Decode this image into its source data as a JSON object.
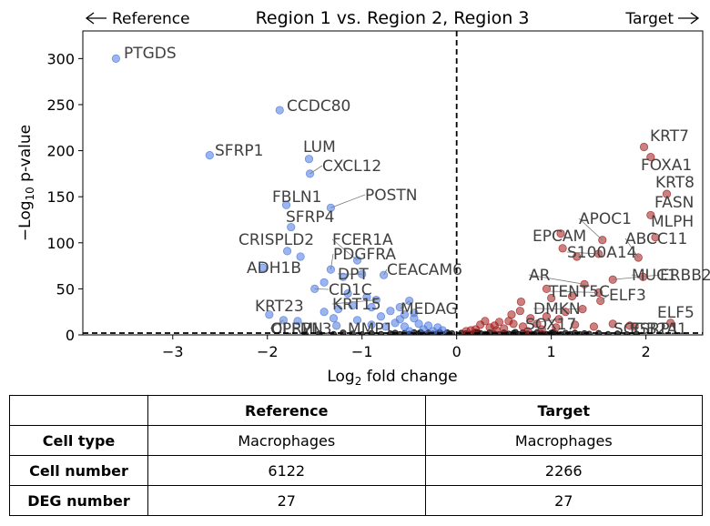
{
  "title": "Region 1 vs. Region 2, Region 3",
  "direction": {
    "left": "Reference",
    "right": "Target"
  },
  "table": {
    "headers": [
      "",
      "Reference",
      "Target"
    ],
    "rows": [
      {
        "label": "Cell type",
        "reference": "Macrophages",
        "target": "Macrophages"
      },
      {
        "label": "Cell number",
        "reference": "6122",
        "target": "2266"
      },
      {
        "label": "DEG number",
        "reference": "27",
        "target": "27"
      }
    ]
  },
  "chart_data": {
    "type": "scatter",
    "title": "Region 1 vs. Region 2, Region 3",
    "xlabel": "Log2 fold change",
    "ylabel": "−Log10 p-value",
    "xlim": [
      -3.95,
      2.6
    ],
    "ylim": [
      0,
      330
    ],
    "xticks": [
      -3,
      -2,
      -1,
      0,
      1,
      2
    ],
    "yticks": [
      0,
      50,
      100,
      150,
      200,
      250,
      300
    ],
    "threshold_lines": {
      "x": 0,
      "y": 2
    },
    "colors": {
      "reference": "#4a78e0",
      "target": "#a31a1a",
      "nonsig": "#111111",
      "label": "#404040"
    },
    "reference_points": [
      {
        "x": -3.6,
        "y": 300,
        "label": "PTGDS"
      },
      {
        "x": -1.87,
        "y": 244,
        "label": "CCDC80"
      },
      {
        "x": -2.61,
        "y": 195,
        "label": "SFRP1"
      },
      {
        "x": -1.56,
        "y": 191,
        "label": "LUM"
      },
      {
        "x": -1.55,
        "y": 175,
        "label": "CXCL12"
      },
      {
        "x": -1.8,
        "y": 141,
        "label": "FBLN1"
      },
      {
        "x": -1.33,
        "y": 138,
        "label": "POSTN"
      },
      {
        "x": -1.75,
        "y": 117,
        "label": "SFRP4"
      },
      {
        "x": -1.79,
        "y": 91,
        "label": "CRISPLD2"
      },
      {
        "x": -1.05,
        "y": 81,
        "label": "FCER1A"
      },
      {
        "x": -1.33,
        "y": 71,
        "label": "PDGFRA"
      },
      {
        "x": -2.05,
        "y": 73,
        "label": "ADH1B"
      },
      {
        "x": -0.77,
        "y": 65,
        "label": "CEACAM6"
      },
      {
        "x": -1.0,
        "y": 66,
        "label": "DPT"
      },
      {
        "x": -1.5,
        "y": 50,
        "label": "CD1C"
      },
      {
        "x": -0.85,
        "y": 38,
        "label": "KRT15"
      },
      {
        "x": -1.98,
        "y": 22,
        "label": "KRT23"
      },
      {
        "x": -0.5,
        "y": 37,
        "label": "MEDAG"
      },
      {
        "x": -1.83,
        "y": 16,
        "label": "OLFML3"
      },
      {
        "x": -1.68,
        "y": 15,
        "label": "CPRPN"
      },
      {
        "x": -1.27,
        "y": 10,
        "label": "MMP1"
      },
      {
        "x": -1.65,
        "y": 85
      },
      {
        "x": -1.2,
        "y": 63
      },
      {
        "x": -1.4,
        "y": 57
      },
      {
        "x": -1.15,
        "y": 45
      },
      {
        "x": -0.95,
        "y": 41
      },
      {
        "x": -0.9,
        "y": 30
      },
      {
        "x": -1.1,
        "y": 32
      },
      {
        "x": -1.25,
        "y": 28
      },
      {
        "x": -1.4,
        "y": 25
      },
      {
        "x": -0.6,
        "y": 30
      },
      {
        "x": -0.7,
        "y": 26
      },
      {
        "x": -0.55,
        "y": 22
      },
      {
        "x": -0.45,
        "y": 18
      },
      {
        "x": -0.8,
        "y": 20
      },
      {
        "x": -1.05,
        "y": 16
      },
      {
        "x": -1.3,
        "y": 18
      },
      {
        "x": -0.65,
        "y": 13
      },
      {
        "x": -0.4,
        "y": 12
      },
      {
        "x": -0.55,
        "y": 9
      },
      {
        "x": -0.3,
        "y": 10
      },
      {
        "x": -0.2,
        "y": 8
      },
      {
        "x": -0.35,
        "y": 6
      },
      {
        "x": -0.75,
        "y": 9
      },
      {
        "x": -0.9,
        "y": 11
      },
      {
        "x": -0.25,
        "y": 4
      },
      {
        "x": -0.15,
        "y": 5
      },
      {
        "x": -0.5,
        "y": 4
      },
      {
        "x": -0.6,
        "y": 17
      },
      {
        "x": -0.45,
        "y": 24
      }
    ],
    "target_points": [
      {
        "x": 1.98,
        "y": 204,
        "label": "KRT7"
      },
      {
        "x": 2.05,
        "y": 193,
        "label": "FOXA1"
      },
      {
        "x": 2.22,
        "y": 153,
        "label": "KRT8"
      },
      {
        "x": 2.05,
        "y": 130,
        "label": "FASN"
      },
      {
        "x": 1.54,
        "y": 103,
        "label": "APOC1"
      },
      {
        "x": 2.1,
        "y": 106,
        "label": "MLPH"
      },
      {
        "x": 1.1,
        "y": 110,
        "label": "EPCAM"
      },
      {
        "x": 1.92,
        "y": 84,
        "label": "ABCC11"
      },
      {
        "x": 1.5,
        "y": 88,
        "label": "S100A14"
      },
      {
        "x": 1.35,
        "y": 55,
        "label": "AR"
      },
      {
        "x": 1.65,
        "y": 60,
        "label": "ERBB2"
      },
      {
        "x": 1.97,
        "y": 63,
        "label": "MUC1"
      },
      {
        "x": 1.5,
        "y": 46,
        "label": "TENT5C"
      },
      {
        "x": 1.52,
        "y": 37,
        "label": "ELF3"
      },
      {
        "x": 1.33,
        "y": 28,
        "label": "DMKN"
      },
      {
        "x": 2.26,
        "y": 13,
        "label": "ELF5"
      },
      {
        "x": 1.08,
        "y": 17,
        "label": "SOX17"
      },
      {
        "x": 1.83,
        "y": 10,
        "label": "SCGB2A1"
      },
      {
        "x": 1.88,
        "y": 9,
        "label": "ESRP1"
      },
      {
        "x": 1.12,
        "y": 94
      },
      {
        "x": 1.27,
        "y": 85
      },
      {
        "x": 0.95,
        "y": 50
      },
      {
        "x": 1.0,
        "y": 40
      },
      {
        "x": 1.22,
        "y": 42
      },
      {
        "x": 1.15,
        "y": 25
      },
      {
        "x": 0.95,
        "y": 20
      },
      {
        "x": 0.78,
        "y": 18
      },
      {
        "x": 0.68,
        "y": 36
      },
      {
        "x": 0.67,
        "y": 26
      },
      {
        "x": 0.55,
        "y": 15
      },
      {
        "x": 0.6,
        "y": 12
      },
      {
        "x": 0.45,
        "y": 14
      },
      {
        "x": 0.4,
        "y": 10
      },
      {
        "x": 0.35,
        "y": 8
      },
      {
        "x": 0.3,
        "y": 15
      },
      {
        "x": 0.2,
        "y": 6
      },
      {
        "x": 0.15,
        "y": 5
      },
      {
        "x": 0.5,
        "y": 7
      },
      {
        "x": 0.7,
        "y": 9
      },
      {
        "x": 0.85,
        "y": 12
      },
      {
        "x": 1.05,
        "y": 8
      },
      {
        "x": 1.25,
        "y": 11
      },
      {
        "x": 1.45,
        "y": 9
      },
      {
        "x": 1.65,
        "y": 12
      },
      {
        "x": 0.25,
        "y": 11
      },
      {
        "x": 0.58,
        "y": 22
      },
      {
        "x": 0.9,
        "y": 6
      },
      {
        "x": 0.1,
        "y": 4
      },
      {
        "x": 0.42,
        "y": 5
      },
      {
        "x": 0.75,
        "y": 4
      }
    ],
    "nonsig_points": [
      {
        "x": 0.05,
        "y": 2
      },
      {
        "x": 0.1,
        "y": 1.5
      },
      {
        "x": 0.15,
        "y": 1
      },
      {
        "x": 0.2,
        "y": 3
      },
      {
        "x": 0.25,
        "y": 1.8
      },
      {
        "x": 0.3,
        "y": 0.8
      },
      {
        "x": 0.35,
        "y": 2.5
      },
      {
        "x": 0.4,
        "y": 1.2
      },
      {
        "x": 0.45,
        "y": 0.5
      },
      {
        "x": 0.5,
        "y": 2.2
      },
      {
        "x": 0.55,
        "y": 1
      },
      {
        "x": 0.6,
        "y": 1.6
      },
      {
        "x": 0.65,
        "y": 0.6
      },
      {
        "x": 0.7,
        "y": 2.4
      },
      {
        "x": 0.75,
        "y": 1.3
      },
      {
        "x": 0.8,
        "y": 0.9
      },
      {
        "x": 0.85,
        "y": 2.6
      },
      {
        "x": 0.9,
        "y": 1.4
      },
      {
        "x": 0.95,
        "y": 0.7
      },
      {
        "x": 1.0,
        "y": 2.0
      },
      {
        "x": 1.05,
        "y": 1.1
      },
      {
        "x": 1.1,
        "y": 0.4
      },
      {
        "x": 1.15,
        "y": 1.9
      },
      {
        "x": 1.2,
        "y": 0.8
      },
      {
        "x": 1.25,
        "y": 2.1
      },
      {
        "x": 1.3,
        "y": 0.5
      },
      {
        "x": 1.35,
        "y": 1.5
      },
      {
        "x": 1.4,
        "y": 0.9
      },
      {
        "x": 1.5,
        "y": 1.7
      },
      {
        "x": 1.6,
        "y": 0.6
      },
      {
        "x": 1.7,
        "y": 1.2
      },
      {
        "x": 1.8,
        "y": 0.4
      },
      {
        "x": 1.9,
        "y": 1.0
      },
      {
        "x": 0.12,
        "y": 0.3
      },
      {
        "x": 0.32,
        "y": 0.4
      },
      {
        "x": 0.52,
        "y": 0.3
      },
      {
        "x": 0.72,
        "y": 0.2
      },
      {
        "x": 0.92,
        "y": 0.3
      },
      {
        "x": 0.22,
        "y": 2.8
      },
      {
        "x": 0.62,
        "y": 2.9
      },
      {
        "x": 0.82,
        "y": 0.3
      },
      {
        "x": 1.02,
        "y": 2.7
      },
      {
        "x": -0.05,
        "y": 1.5
      },
      {
        "x": -0.1,
        "y": 2.5
      },
      {
        "x": -0.15,
        "y": 0.8
      },
      {
        "x": -0.2,
        "y": 1.8
      },
      {
        "x": -0.25,
        "y": 1.0
      },
      {
        "x": -0.3,
        "y": 2.2
      },
      {
        "x": -0.35,
        "y": 0.6
      },
      {
        "x": -0.4,
        "y": 1.4
      },
      {
        "x": -0.45,
        "y": 2.6
      },
      {
        "x": -0.5,
        "y": 0.9
      },
      {
        "x": -0.55,
        "y": 1.7
      },
      {
        "x": -0.6,
        "y": 0.5
      },
      {
        "x": -0.65,
        "y": 2.0
      },
      {
        "x": -0.7,
        "y": 1.2
      },
      {
        "x": -0.8,
        "y": 0.7
      },
      {
        "x": -0.9,
        "y": 1.6
      },
      {
        "x": -1.0,
        "y": 0.4
      },
      {
        "x": -1.1,
        "y": 1.1
      },
      {
        "x": -1.2,
        "y": 2.3
      },
      {
        "x": -1.3,
        "y": 0.6
      },
      {
        "x": -1.45,
        "y": 1.3
      },
      {
        "x": -1.6,
        "y": 0.8
      },
      {
        "x": -0.08,
        "y": 0.3
      },
      {
        "x": -0.28,
        "y": 0.2
      },
      {
        "x": -0.48,
        "y": 0.3
      },
      {
        "x": -0.68,
        "y": 0.2
      },
      {
        "x": -0.18,
        "y": 2.9
      },
      {
        "x": -0.38,
        "y": 2.8
      }
    ]
  }
}
